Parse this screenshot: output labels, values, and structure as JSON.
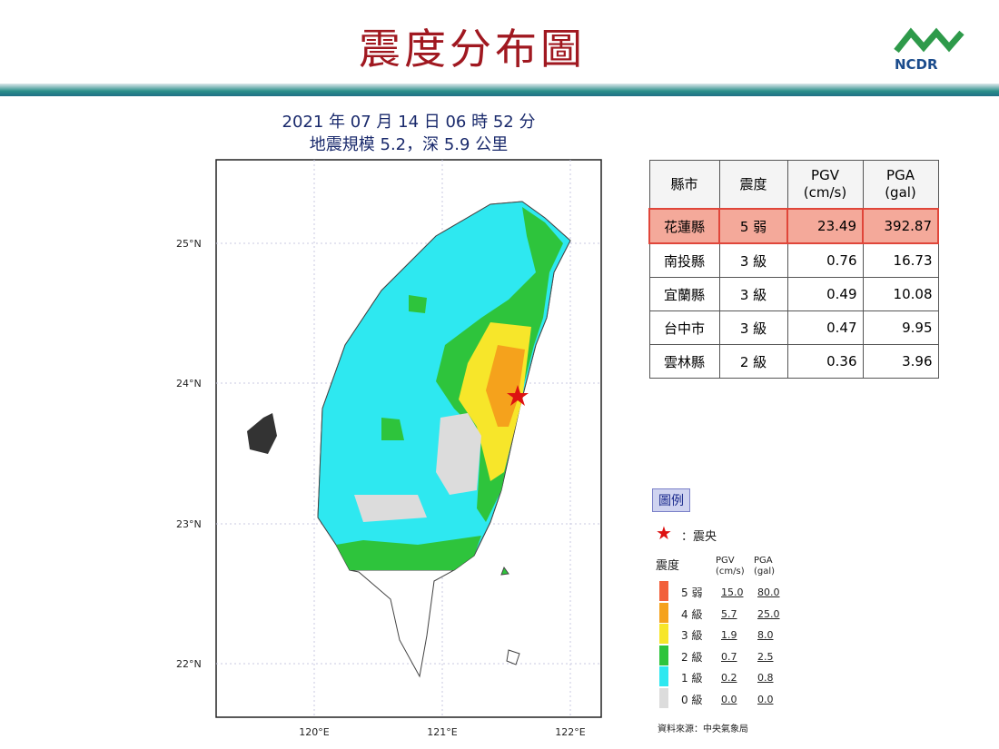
{
  "header": {
    "title": "震度分布圖",
    "logo": "NCDR"
  },
  "map": {
    "subtitle": [
      "2021 年 07 月 14 日 06 時 52 分",
      "地震規模 5.2，深 5.9 公里"
    ],
    "lat_labels": [
      "25°N",
      "24°N",
      "23°N",
      "22°N"
    ],
    "lon_labels": [
      "120°E",
      "121°E",
      "122°E"
    ]
  },
  "table": {
    "columns": [
      [
        "縣市"
      ],
      [
        "震度"
      ],
      [
        "PGV",
        "(cm/s)"
      ],
      [
        "PGA",
        "(gal)"
      ]
    ],
    "rows": [
      [
        "花蓮縣",
        "5 弱",
        "23.49",
        "392.87"
      ],
      [
        "南投縣",
        "3 級",
        "0.76",
        "16.73"
      ],
      [
        "宜蘭縣",
        "3 級",
        "0.49",
        "10.08"
      ],
      [
        "台中市",
        "3 級",
        "0.47",
        "9.95"
      ],
      [
        "雲林縣",
        "2 級",
        "0.36",
        "3.96"
      ]
    ]
  },
  "legend": {
    "title": "圖例",
    "epicenter": "：震央",
    "columns": [
      [
        "震度"
      ],
      [
        "PGV",
        "(cm/s)"
      ],
      [
        "PGA",
        "(gal)"
      ]
    ],
    "rows": [
      {
        "label": "5 弱",
        "pgv": "15.0",
        "pga": "80.0",
        "color": "#f2603a"
      },
      {
        "label": "4 級",
        "pgv": "5.7",
        "pga": "25.0",
        "color": "#f5a21c"
      },
      {
        "label": "3 級",
        "pgv": "1.9",
        "pga": "8.0",
        "color": "#f7e62a"
      },
      {
        "label": "2 級",
        "pgv": "0.7",
        "pga": "2.5",
        "color": "#2ec43c"
      },
      {
        "label": "1 級",
        "pgv": "0.2",
        "pga": "0.8",
        "color": "#2ee8f0"
      },
      {
        "label": "0 級",
        "pgv": "0.0",
        "pga": "0.0",
        "color": "#dcdcdc"
      }
    ],
    "source": "資料來源：中央氣象局"
  }
}
